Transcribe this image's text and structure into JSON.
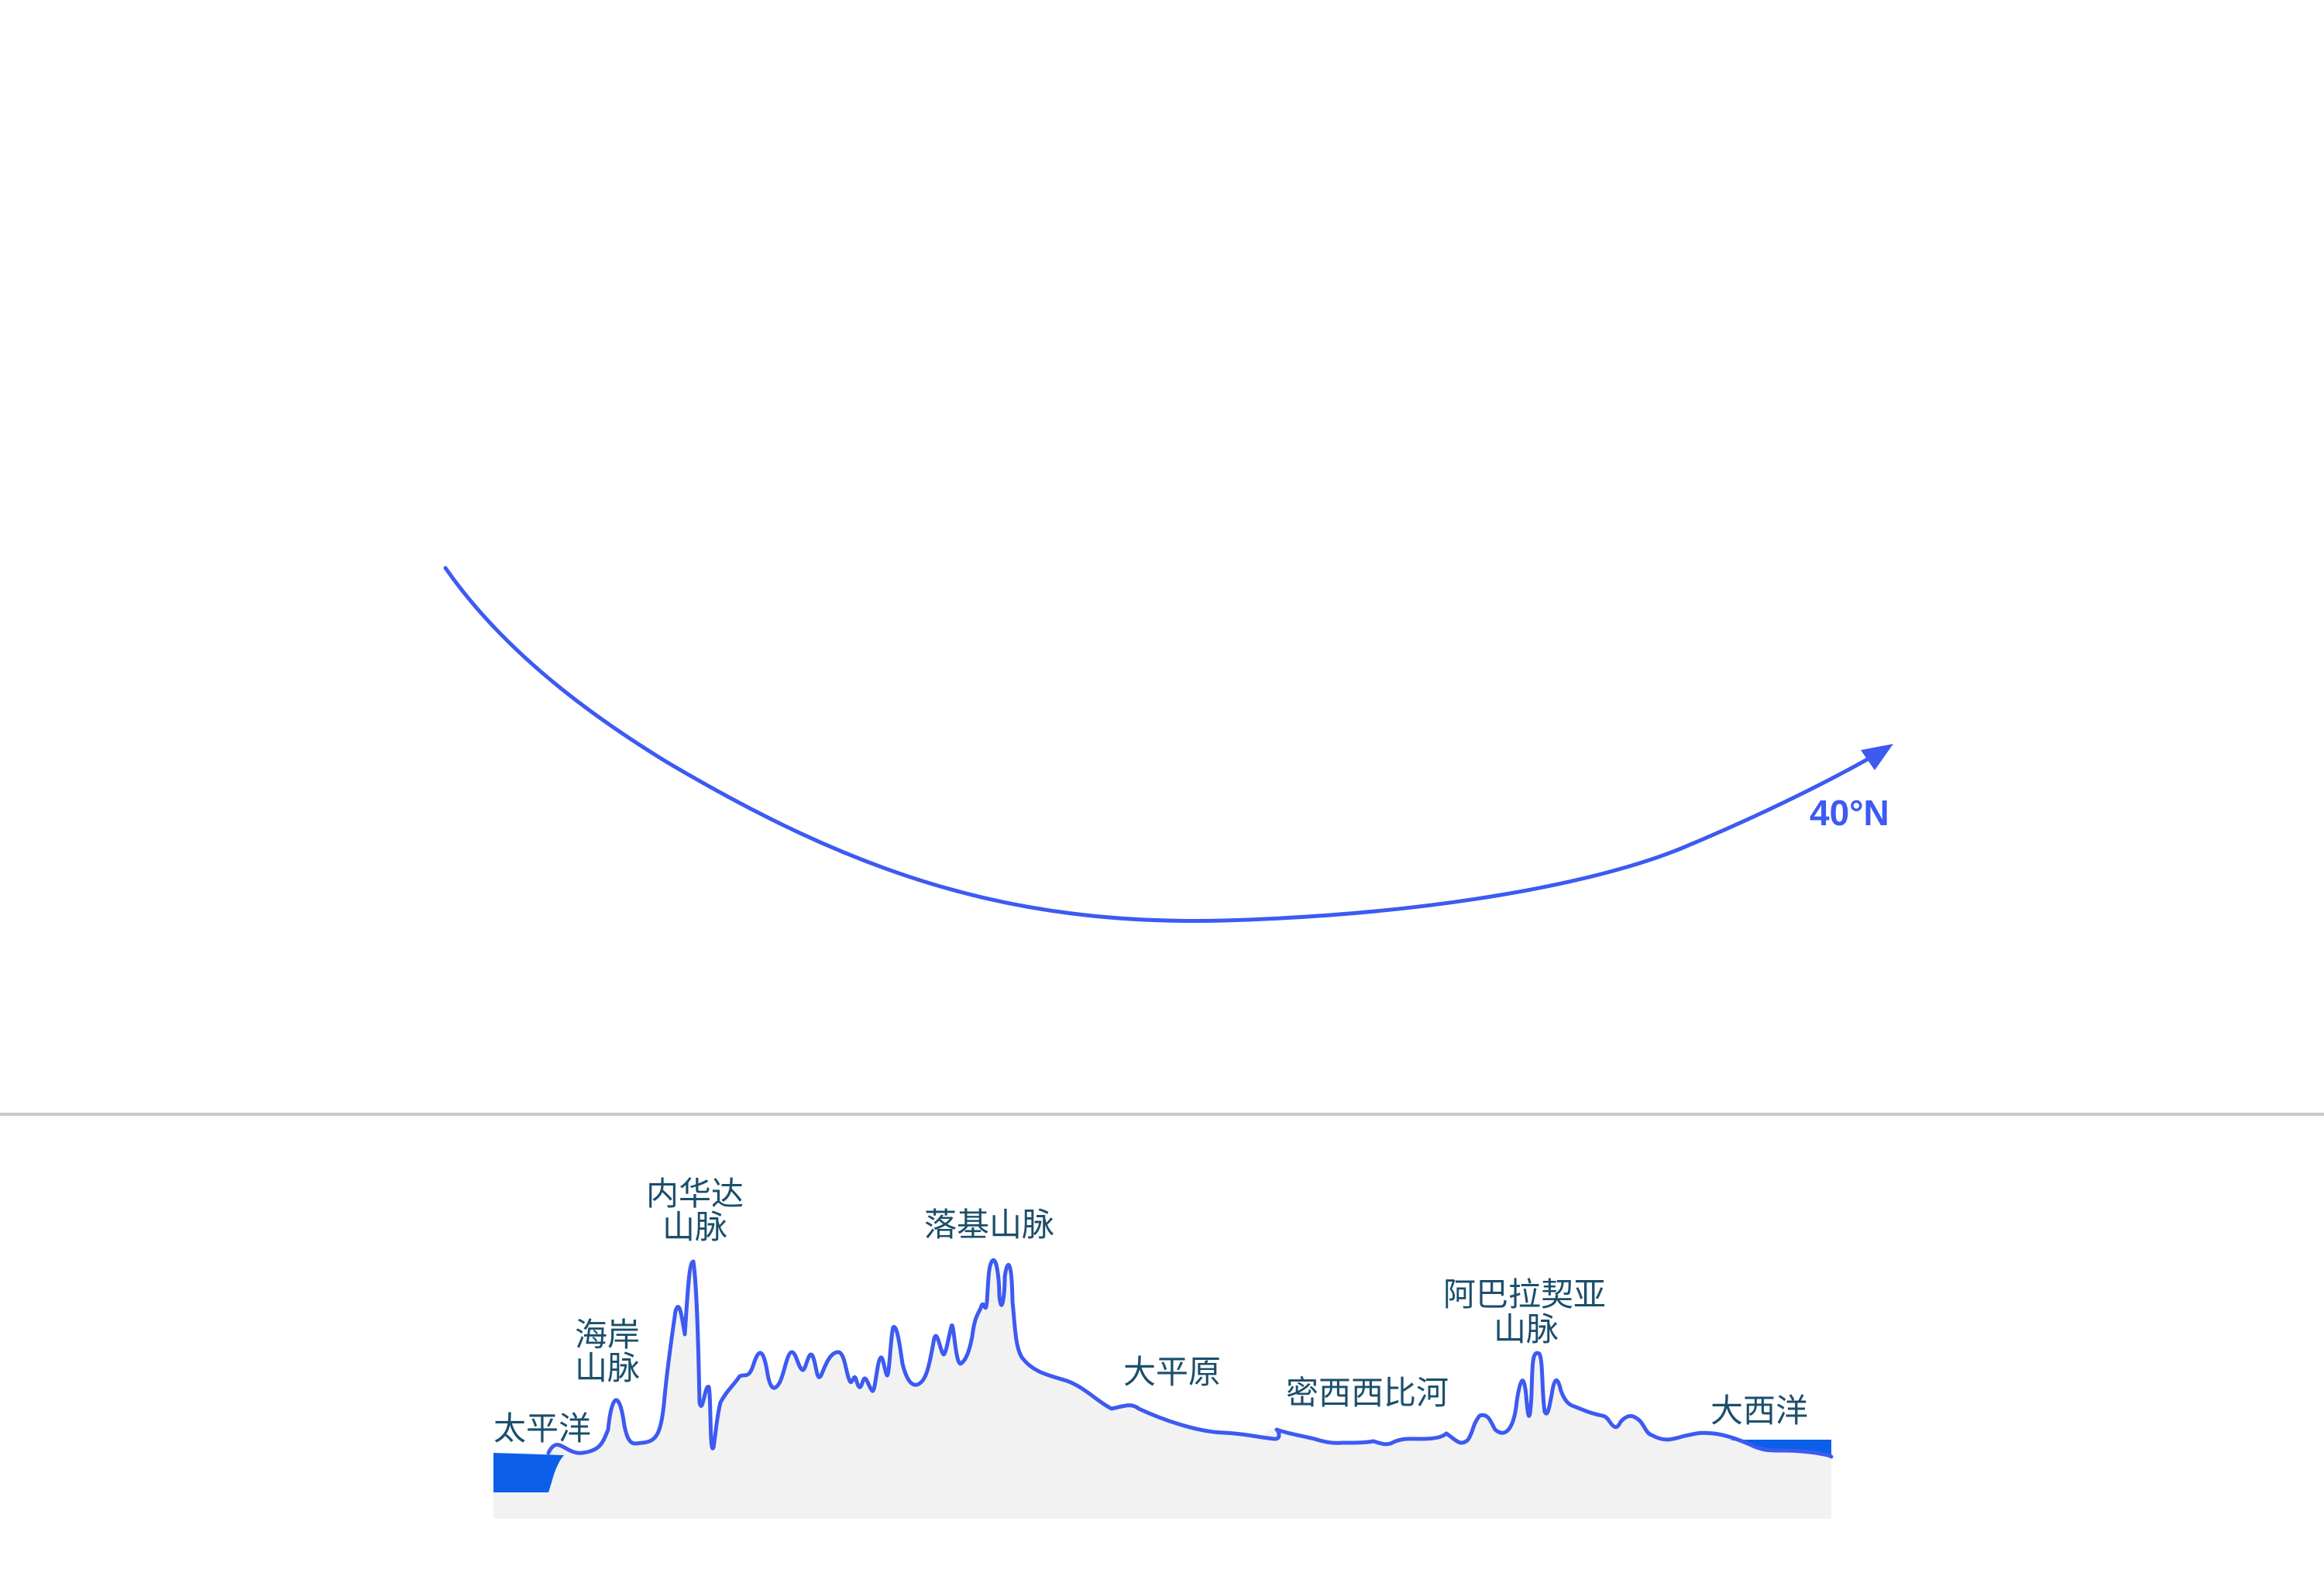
{
  "colors": {
    "jet_stream": "#3d5af1",
    "profile_line": "#3d5af1",
    "terrain_fill": "#f2f2f2",
    "water": "#0b5fe8",
    "label_text": "#1b4e6b",
    "divider": "#c8c8c8"
  },
  "jet_stream": {
    "latitude_label": "40°N"
  },
  "profile": {
    "labels": {
      "pacific": "太平洋",
      "coast_range_1": "海岸",
      "coast_range_2": "山脉",
      "nevada_1": "内华达",
      "nevada_2": "山脉",
      "rockies": "落基山脉",
      "great_plains": "大平原",
      "mississippi": "密西西比河",
      "appalachian_1": "阿巴拉契亚",
      "appalachian_2": "山脉",
      "atlantic": "大西洋"
    }
  }
}
